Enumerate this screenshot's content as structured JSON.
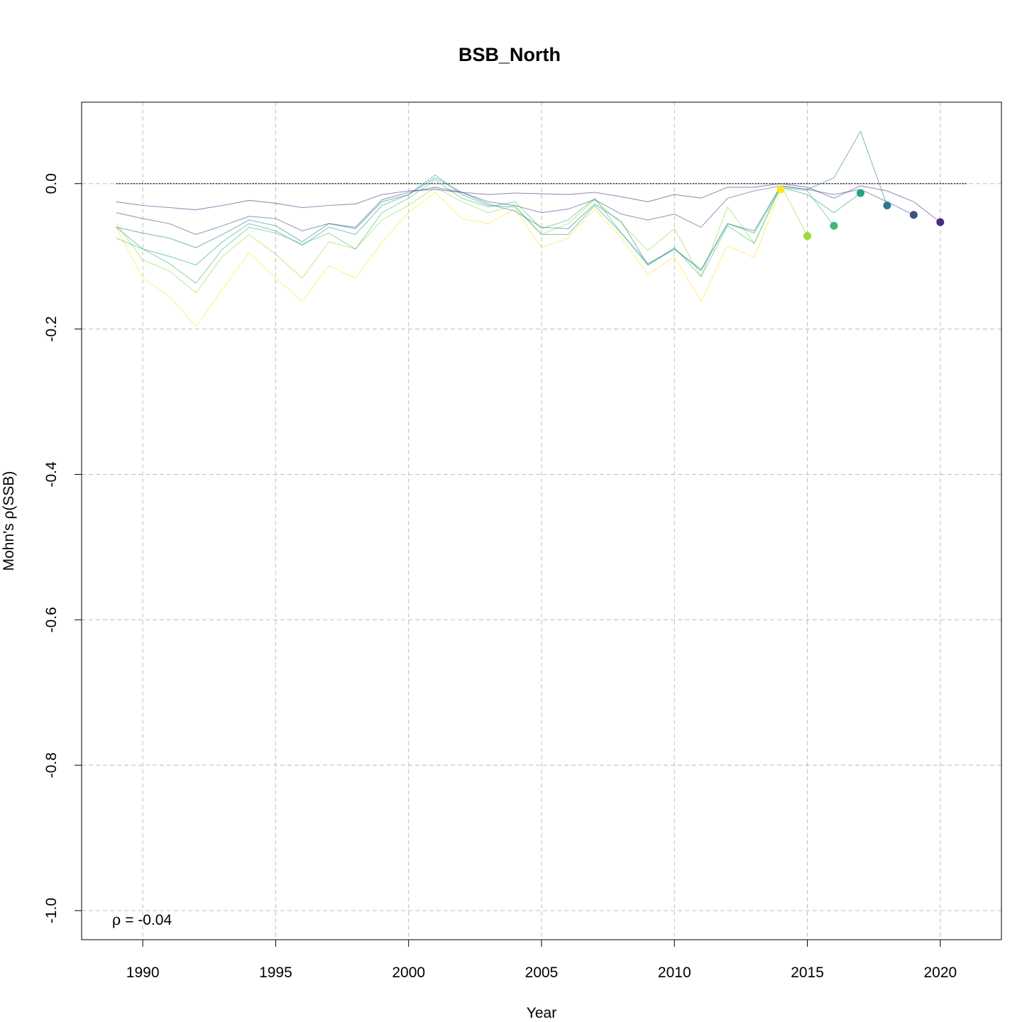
{
  "chart_data": {
    "type": "line",
    "title": "BSB_North",
    "xlabel": "Year",
    "ylabel": "Mohn's ρ(SSB)",
    "xlim": [
      1987.7,
      2022.3
    ],
    "ylim": [
      -1.04,
      0.112
    ],
    "x_ticks": [
      1990,
      1995,
      2000,
      2005,
      2010,
      2015,
      2020
    ],
    "x_tick_labels": [
      "1990",
      "1995",
      "2000",
      "2005",
      "2010",
      "2015",
      "2020"
    ],
    "y_ticks": [
      0.0,
      -0.2,
      -0.4,
      -0.6,
      -0.8,
      -1.0
    ],
    "y_tick_labels": [
      "0.0",
      "-0.2",
      "-0.4",
      "-0.6",
      "-0.8",
      "-1.0"
    ],
    "grid": true,
    "reference_line": {
      "y": 0,
      "x_range": [
        1989,
        2021
      ],
      "style": "dotted"
    },
    "annotation": {
      "symbol": "ρ",
      "operator": " = ",
      "value": "-0.04"
    },
    "series": [
      {
        "color": "#fde725",
        "x": [
          1989,
          1990,
          1991,
          1992,
          1993,
          1994,
          1995,
          1996,
          1997,
          1998,
          1999,
          2000,
          2001,
          2002,
          2003,
          2004,
          2005,
          2006,
          2007,
          2008,
          2009,
          2010,
          2011,
          2012,
          2013,
          2014
        ],
        "values": [
          -0.06,
          -0.13,
          -0.155,
          -0.197,
          -0.145,
          -0.095,
          -0.13,
          -0.162,
          -0.113,
          -0.13,
          -0.08,
          -0.04,
          -0.012,
          -0.048,
          -0.055,
          -0.035,
          -0.088,
          -0.075,
          -0.035,
          -0.075,
          -0.125,
          -0.1,
          -0.162,
          -0.085,
          -0.102,
          -0.008
        ],
        "end_point": [
          2014,
          -0.008
        ]
      },
      {
        "color": "#9bd93c",
        "x": [
          1989,
          1990,
          1991,
          1992,
          1993,
          1994,
          1995,
          1996,
          1997,
          1998,
          1999,
          2000,
          2001,
          2002,
          2003,
          2004,
          2005,
          2006,
          2007,
          2008,
          2009,
          2010,
          2011,
          2012,
          2013,
          2014,
          2015
        ],
        "values": [
          -0.055,
          -0.105,
          -0.12,
          -0.15,
          -0.1,
          -0.07,
          -0.097,
          -0.13,
          -0.08,
          -0.09,
          -0.05,
          -0.03,
          -0.005,
          -0.025,
          -0.04,
          -0.03,
          -0.07,
          -0.055,
          -0.022,
          -0.055,
          -0.092,
          -0.062,
          -0.128,
          -0.032,
          -0.082,
          -0.002,
          -0.072
        ],
        "end_point": [
          2015,
          -0.072
        ]
      },
      {
        "color": "#3aba76",
        "x": [
          1989,
          1990,
          1991,
          1992,
          1993,
          1994,
          1995,
          1996,
          1997,
          1998,
          1999,
          2000,
          2001,
          2002,
          2003,
          2004,
          2005,
          2006,
          2007,
          2008,
          2009,
          2010,
          2011,
          2012,
          2013,
          2014,
          2015,
          2016
        ],
        "values": [
          -0.075,
          -0.09,
          -0.11,
          -0.137,
          -0.09,
          -0.06,
          -0.068,
          -0.083,
          -0.068,
          -0.09,
          -0.04,
          -0.02,
          0.005,
          -0.02,
          -0.032,
          -0.025,
          -0.062,
          -0.05,
          -0.02,
          -0.068,
          -0.112,
          -0.088,
          -0.128,
          -0.058,
          -0.082,
          -0.005,
          -0.01,
          -0.058
        ],
        "end_point": [
          2016,
          -0.058
        ]
      },
      {
        "color": "#20a486",
        "x": [
          1989,
          1990,
          1991,
          1992,
          1993,
          1994,
          1995,
          1996,
          1997,
          1998,
          1999,
          2000,
          2001,
          2002,
          2003,
          2004,
          2005,
          2006,
          2007,
          2008,
          2009,
          2010,
          2011,
          2012,
          2013,
          2014,
          2015,
          2016,
          2017
        ],
        "values": [
          -0.06,
          -0.09,
          -0.1,
          -0.112,
          -0.08,
          -0.055,
          -0.065,
          -0.085,
          -0.06,
          -0.07,
          -0.03,
          -0.015,
          0.012,
          -0.015,
          -0.03,
          -0.032,
          -0.07,
          -0.07,
          -0.03,
          -0.068,
          -0.11,
          -0.09,
          -0.12,
          -0.055,
          -0.068,
          -0.005,
          -0.015,
          -0.04,
          -0.013
        ],
        "end_point": [
          2017,
          -0.013
        ]
      },
      {
        "color": "#287c8e",
        "x": [
          1989,
          1990,
          1991,
          1992,
          1993,
          1994,
          1995,
          1996,
          1997,
          1998,
          1999,
          2000,
          2001,
          2002,
          2003,
          2004,
          2005,
          2006,
          2007,
          2008,
          2009,
          2010,
          2011,
          2012,
          2013,
          2014,
          2015,
          2016,
          2017,
          2018
        ],
        "values": [
          -0.06,
          -0.068,
          -0.075,
          -0.088,
          -0.07,
          -0.05,
          -0.058,
          -0.08,
          -0.055,
          -0.062,
          -0.025,
          -0.015,
          0.008,
          -0.012,
          -0.028,
          -0.038,
          -0.06,
          -0.062,
          -0.028,
          -0.052,
          -0.112,
          -0.09,
          -0.118,
          -0.055,
          -0.065,
          -0.003,
          -0.008,
          0.008,
          0.072,
          -0.03
        ],
        "end_point": [
          2018,
          -0.03
        ]
      },
      {
        "color": "#3b528b",
        "x": [
          1989,
          1990,
          1991,
          1992,
          1993,
          1994,
          1995,
          1996,
          1997,
          1998,
          1999,
          2000,
          2001,
          2002,
          2003,
          2004,
          2005,
          2006,
          2007,
          2008,
          2009,
          2010,
          2011,
          2012,
          2013,
          2014,
          2015,
          2016,
          2017,
          2018,
          2019
        ],
        "values": [
          -0.04,
          -0.048,
          -0.055,
          -0.07,
          -0.058,
          -0.045,
          -0.048,
          -0.065,
          -0.055,
          -0.06,
          -0.022,
          -0.012,
          -0.005,
          -0.012,
          -0.025,
          -0.03,
          -0.04,
          -0.035,
          -0.022,
          -0.042,
          -0.05,
          -0.042,
          -0.06,
          -0.02,
          -0.01,
          -0.003,
          -0.008,
          -0.015,
          -0.008,
          -0.025,
          -0.043
        ],
        "end_point": [
          2019,
          -0.043
        ]
      },
      {
        "color": "#472d7b",
        "x": [
          1989,
          1990,
          1991,
          1992,
          1993,
          1994,
          1995,
          1996,
          1997,
          1998,
          1999,
          2000,
          2001,
          2002,
          2003,
          2004,
          2005,
          2006,
          2007,
          2008,
          2009,
          2010,
          2011,
          2012,
          2013,
          2014,
          2015,
          2016,
          2017,
          2018,
          2019,
          2020
        ],
        "values": [
          -0.025,
          -0.03,
          -0.033,
          -0.036,
          -0.03,
          -0.023,
          -0.027,
          -0.033,
          -0.03,
          -0.028,
          -0.015,
          -0.01,
          -0.008,
          -0.012,
          -0.015,
          -0.013,
          -0.014,
          -0.015,
          -0.012,
          -0.018,
          -0.025,
          -0.015,
          -0.02,
          -0.005,
          -0.005,
          0.0,
          -0.005,
          -0.02,
          -0.003,
          -0.01,
          -0.025,
          -0.053
        ],
        "end_point": [
          2020,
          -0.053
        ]
      }
    ]
  }
}
